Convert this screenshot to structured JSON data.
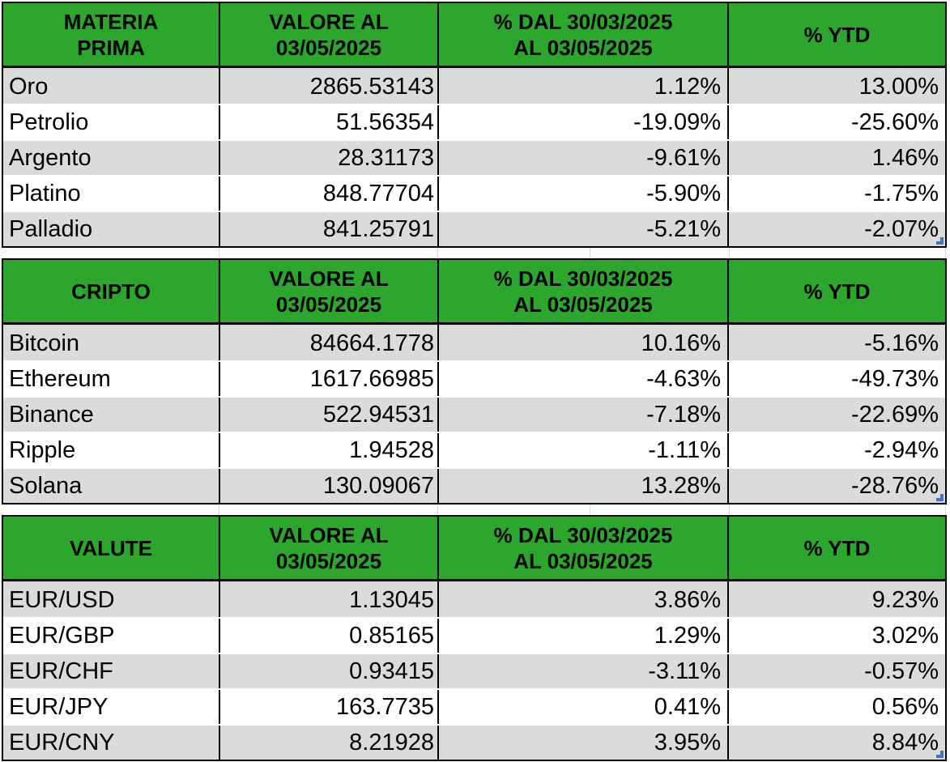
{
  "colors": {
    "header_bg": "#2CA62C",
    "band_gray": "#DBDBDB",
    "positive_text": "#00A651",
    "negative_text": "#FF0000",
    "border": "#000000",
    "gridline": "#D8D8D8",
    "resize_handle_blue": "#4472C4"
  },
  "common_headers": {
    "value": [
      "VALORE AL",
      "03/05/2025"
    ],
    "period": [
      "% DAL 30/03/2025",
      "AL 03/05/2025"
    ],
    "ytd": [
      "% YTD"
    ]
  },
  "tables": [
    {
      "title": [
        "MATERIA",
        "PRIMA"
      ],
      "rows": [
        {
          "name": "Oro",
          "value": "2865.53143",
          "pct": "1.12%",
          "pct_trend": "pos",
          "ytd": "13.00%",
          "ytd_trend": "pos"
        },
        {
          "name": "Petrolio",
          "value": "51.56354",
          "pct": "-19.09%",
          "pct_trend": "neg",
          "ytd": "-25.60%",
          "ytd_trend": "neg"
        },
        {
          "name": "Argento",
          "value": "28.31173",
          "pct": "-9.61%",
          "pct_trend": "neg",
          "ytd": "1.46%",
          "ytd_trend": "pos"
        },
        {
          "name": "Platino",
          "value": "848.77704",
          "pct": "-5.90%",
          "pct_trend": "neg",
          "ytd": "-1.75%",
          "ytd_trend": "neg"
        },
        {
          "name": "Palladio",
          "value": "841.25791",
          "pct": "-5.21%",
          "pct_trend": "neg",
          "ytd": "-2.07%",
          "ytd_trend": "neg"
        }
      ]
    },
    {
      "title": [
        "CRIPTO"
      ],
      "rows": [
        {
          "name": "Bitcoin",
          "value": "84664.1778",
          "pct": "10.16%",
          "pct_trend": "pos",
          "ytd": "-5.16%",
          "ytd_trend": "neg"
        },
        {
          "name": "Ethereum",
          "value": "1617.66985",
          "pct": "-4.63%",
          "pct_trend": "neg",
          "ytd": "-49.73%",
          "ytd_trend": "neg"
        },
        {
          "name": "Binance",
          "value": "522.94531",
          "pct": "-7.18%",
          "pct_trend": "neg",
          "ytd": "-22.69%",
          "ytd_trend": "neg"
        },
        {
          "name": "Ripple",
          "value": "1.94528",
          "pct": "-1.11%",
          "pct_trend": "neg",
          "ytd": "-2.94%",
          "ytd_trend": "neg"
        },
        {
          "name": "Solana",
          "value": "130.09067",
          "pct": "13.28%",
          "pct_trend": "pos",
          "ytd": "-28.76%",
          "ytd_trend": "neg"
        }
      ]
    },
    {
      "title": [
        "VALUTE"
      ],
      "rows": [
        {
          "name": "EUR/USD",
          "value": "1.13045",
          "pct": "3.86%",
          "pct_trend": "pos",
          "ytd": "9.23%",
          "ytd_trend": "pos"
        },
        {
          "name": "EUR/GBP",
          "value": "0.85165",
          "pct": "1.29%",
          "pct_trend": "pos",
          "ytd": "3.02%",
          "ytd_trend": "pos"
        },
        {
          "name": "EUR/CHF",
          "value": "0.93415",
          "pct": "-3.11%",
          "pct_trend": "neg",
          "ytd": "-0.57%",
          "ytd_trend": "neg"
        },
        {
          "name": "EUR/JPY",
          "value": "163.7735",
          "pct": "0.41%",
          "pct_trend": "pos",
          "ytd": "0.56%",
          "ytd_trend": "pos"
        },
        {
          "name": "EUR/CNY",
          "value": "8.21928",
          "pct": "3.95%",
          "pct_trend": "pos",
          "ytd": "8.84%",
          "ytd_trend": "pos"
        }
      ]
    }
  ]
}
